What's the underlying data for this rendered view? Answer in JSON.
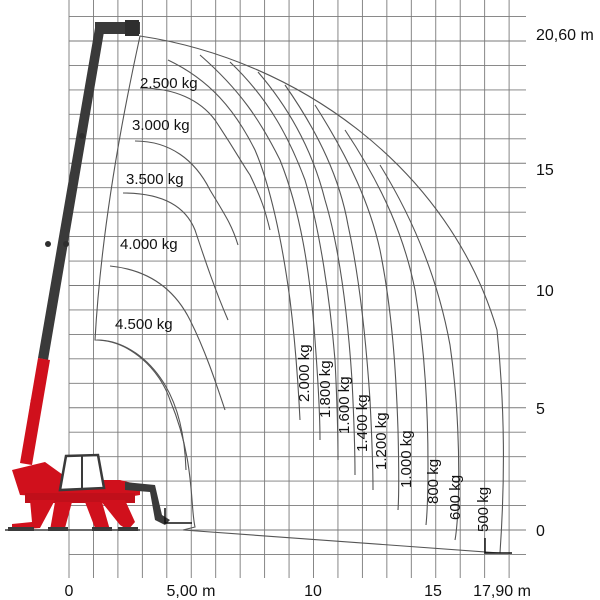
{
  "x_ticks": [
    {
      "value": 0,
      "text": "0"
    },
    {
      "value": 5,
      "text": "5,00 m"
    },
    {
      "value": 10,
      "text": "10"
    },
    {
      "value": 15,
      "text": "15"
    },
    {
      "value": 17.9,
      "text": "17,90 m"
    }
  ],
  "y_ticks": [
    {
      "value": 0,
      "text": "0"
    },
    {
      "value": 5,
      "text": "5"
    },
    {
      "value": 10,
      "text": "10"
    },
    {
      "value": 15,
      "text": "15"
    },
    {
      "value": 20.6,
      "text": "20,60 m"
    }
  ],
  "load_zones": [
    {
      "name": "zone-2500",
      "label": "2.500 kg"
    },
    {
      "name": "zone-3000",
      "label": "3.000 kg"
    },
    {
      "name": "zone-3500",
      "label": "3.500 kg"
    },
    {
      "name": "zone-4000",
      "label": "4.000 kg"
    },
    {
      "name": "zone-4500",
      "label": "4.500 kg"
    },
    {
      "name": "zone-2000",
      "label": "2.000 kg"
    },
    {
      "name": "zone-1800",
      "label": "1.800 kg"
    },
    {
      "name": "zone-1600",
      "label": "1.600 kg"
    },
    {
      "name": "zone-1400",
      "label": "1.400 kg"
    },
    {
      "name": "zone-1200",
      "label": "1.200 kg"
    },
    {
      "name": "zone-1000",
      "label": "1.000 kg"
    },
    {
      "name": "zone-800",
      "label": "800 kg"
    },
    {
      "name": "zone-600",
      "label": "600 kg"
    },
    {
      "name": "zone-500",
      "label": "500 kg"
    }
  ],
  "colors": {
    "grid": "#7a7a7a",
    "curve": "#555555",
    "boom": "#3a3a3a",
    "machine": "#d0101c"
  }
}
